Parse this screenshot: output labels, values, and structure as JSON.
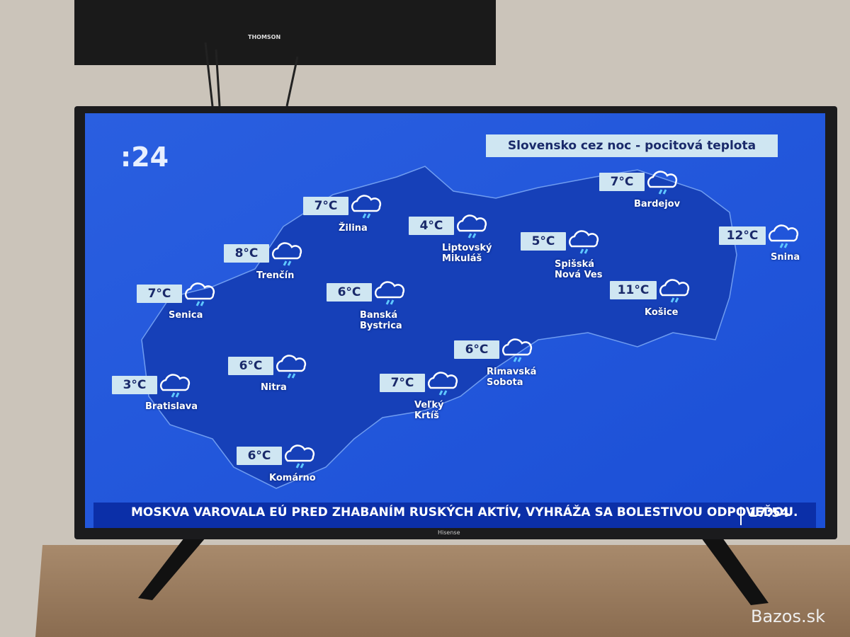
{
  "upper_tv": {
    "brand": "THOMSON"
  },
  "tv": {
    "brand": "Hisense"
  },
  "broadcast": {
    "logo": ":24",
    "title": "Slovensko cez noc - pocitová teplota",
    "cities": [
      {
        "name": "Žilina",
        "temp": "7°C"
      },
      {
        "name": "Trenčín",
        "temp": "8°C"
      },
      {
        "name": "Senica",
        "temp": "7°C"
      },
      {
        "name": "Bratislava",
        "temp": "3°C"
      },
      {
        "name": "Nitra",
        "temp": "6°C"
      },
      {
        "name": "Komárno",
        "temp": "6°C"
      },
      {
        "name": "Banská Bystrica",
        "temp": "6°C"
      },
      {
        "name": "Liptovský Mikuláš",
        "temp": "4°C"
      },
      {
        "name": "Veľký Krtíš",
        "temp": "7°C"
      },
      {
        "name": "Rimavská Sobota",
        "temp": "6°C"
      },
      {
        "name": "Spišská Nová Ves",
        "temp": "5°C"
      },
      {
        "name": "Bardejov",
        "temp": "7°C"
      },
      {
        "name": "Snina",
        "temp": "12°C"
      },
      {
        "name": "Košice",
        "temp": "11°C"
      }
    ],
    "ticker": "MOSKVA VAROVALA EÚ PRED ZHABANÍM RUSKÝCH AKTÍV, VYHRÁŽA SA BOLESTIVOU ODPOVEĎOU.",
    "time": "17:54"
  },
  "watermark": "Bazos.sk"
}
